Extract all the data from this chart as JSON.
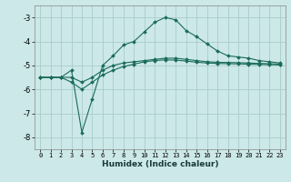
{
  "xlabel": "Humidex (Indice chaleur)",
  "ylabel": "",
  "bg_color": "#cce8e8",
  "grid_color": "#aacccc",
  "line_color": "#1a6b5a",
  "xlim": [
    -0.5,
    23.5
  ],
  "ylim": [
    -8.5,
    -2.5
  ],
  "yticks": [
    -8,
    -7,
    -6,
    -5,
    -4,
    -3
  ],
  "xticks": [
    0,
    1,
    2,
    3,
    4,
    5,
    6,
    7,
    8,
    9,
    10,
    11,
    12,
    13,
    14,
    15,
    16,
    17,
    18,
    19,
    20,
    21,
    22,
    23
  ],
  "line1_x": [
    0,
    1,
    2,
    3,
    4,
    5,
    6,
    7,
    8,
    9,
    10,
    11,
    12,
    13,
    14,
    15,
    16,
    17,
    18,
    19,
    20,
    21,
    22,
    23
  ],
  "line1_y": [
    -5.5,
    -5.5,
    -5.5,
    -5.2,
    -7.8,
    -6.4,
    -5.0,
    -4.6,
    -4.15,
    -4.0,
    -3.6,
    -3.2,
    -3.0,
    -3.1,
    -3.55,
    -3.8,
    -4.1,
    -4.4,
    -4.6,
    -4.65,
    -4.7,
    -4.8,
    -4.85,
    -4.9
  ],
  "line2_x": [
    0,
    1,
    2,
    3,
    4,
    5,
    6,
    7,
    8,
    9,
    10,
    11,
    12,
    13,
    14,
    15,
    16,
    17,
    18,
    19,
    20,
    21,
    22,
    23
  ],
  "line2_y": [
    -5.5,
    -5.5,
    -5.5,
    -5.5,
    -5.7,
    -5.5,
    -5.2,
    -5.0,
    -4.9,
    -4.85,
    -4.8,
    -4.75,
    -4.7,
    -4.7,
    -4.75,
    -4.8,
    -4.85,
    -4.87,
    -4.88,
    -4.89,
    -4.9,
    -4.92,
    -4.93,
    -4.95
  ],
  "line3_x": [
    0,
    1,
    2,
    3,
    4,
    5,
    6,
    7,
    8,
    9,
    10,
    11,
    12,
    13,
    14,
    15,
    16,
    17,
    18,
    19,
    20,
    21,
    22,
    23
  ],
  "line3_y": [
    -5.5,
    -5.5,
    -5.5,
    -5.7,
    -6.0,
    -5.7,
    -5.4,
    -5.2,
    -5.05,
    -4.95,
    -4.85,
    -4.8,
    -4.77,
    -4.78,
    -4.82,
    -4.87,
    -4.9,
    -4.92,
    -4.93,
    -4.94,
    -4.95,
    -4.96,
    -4.97,
    -4.98
  ]
}
